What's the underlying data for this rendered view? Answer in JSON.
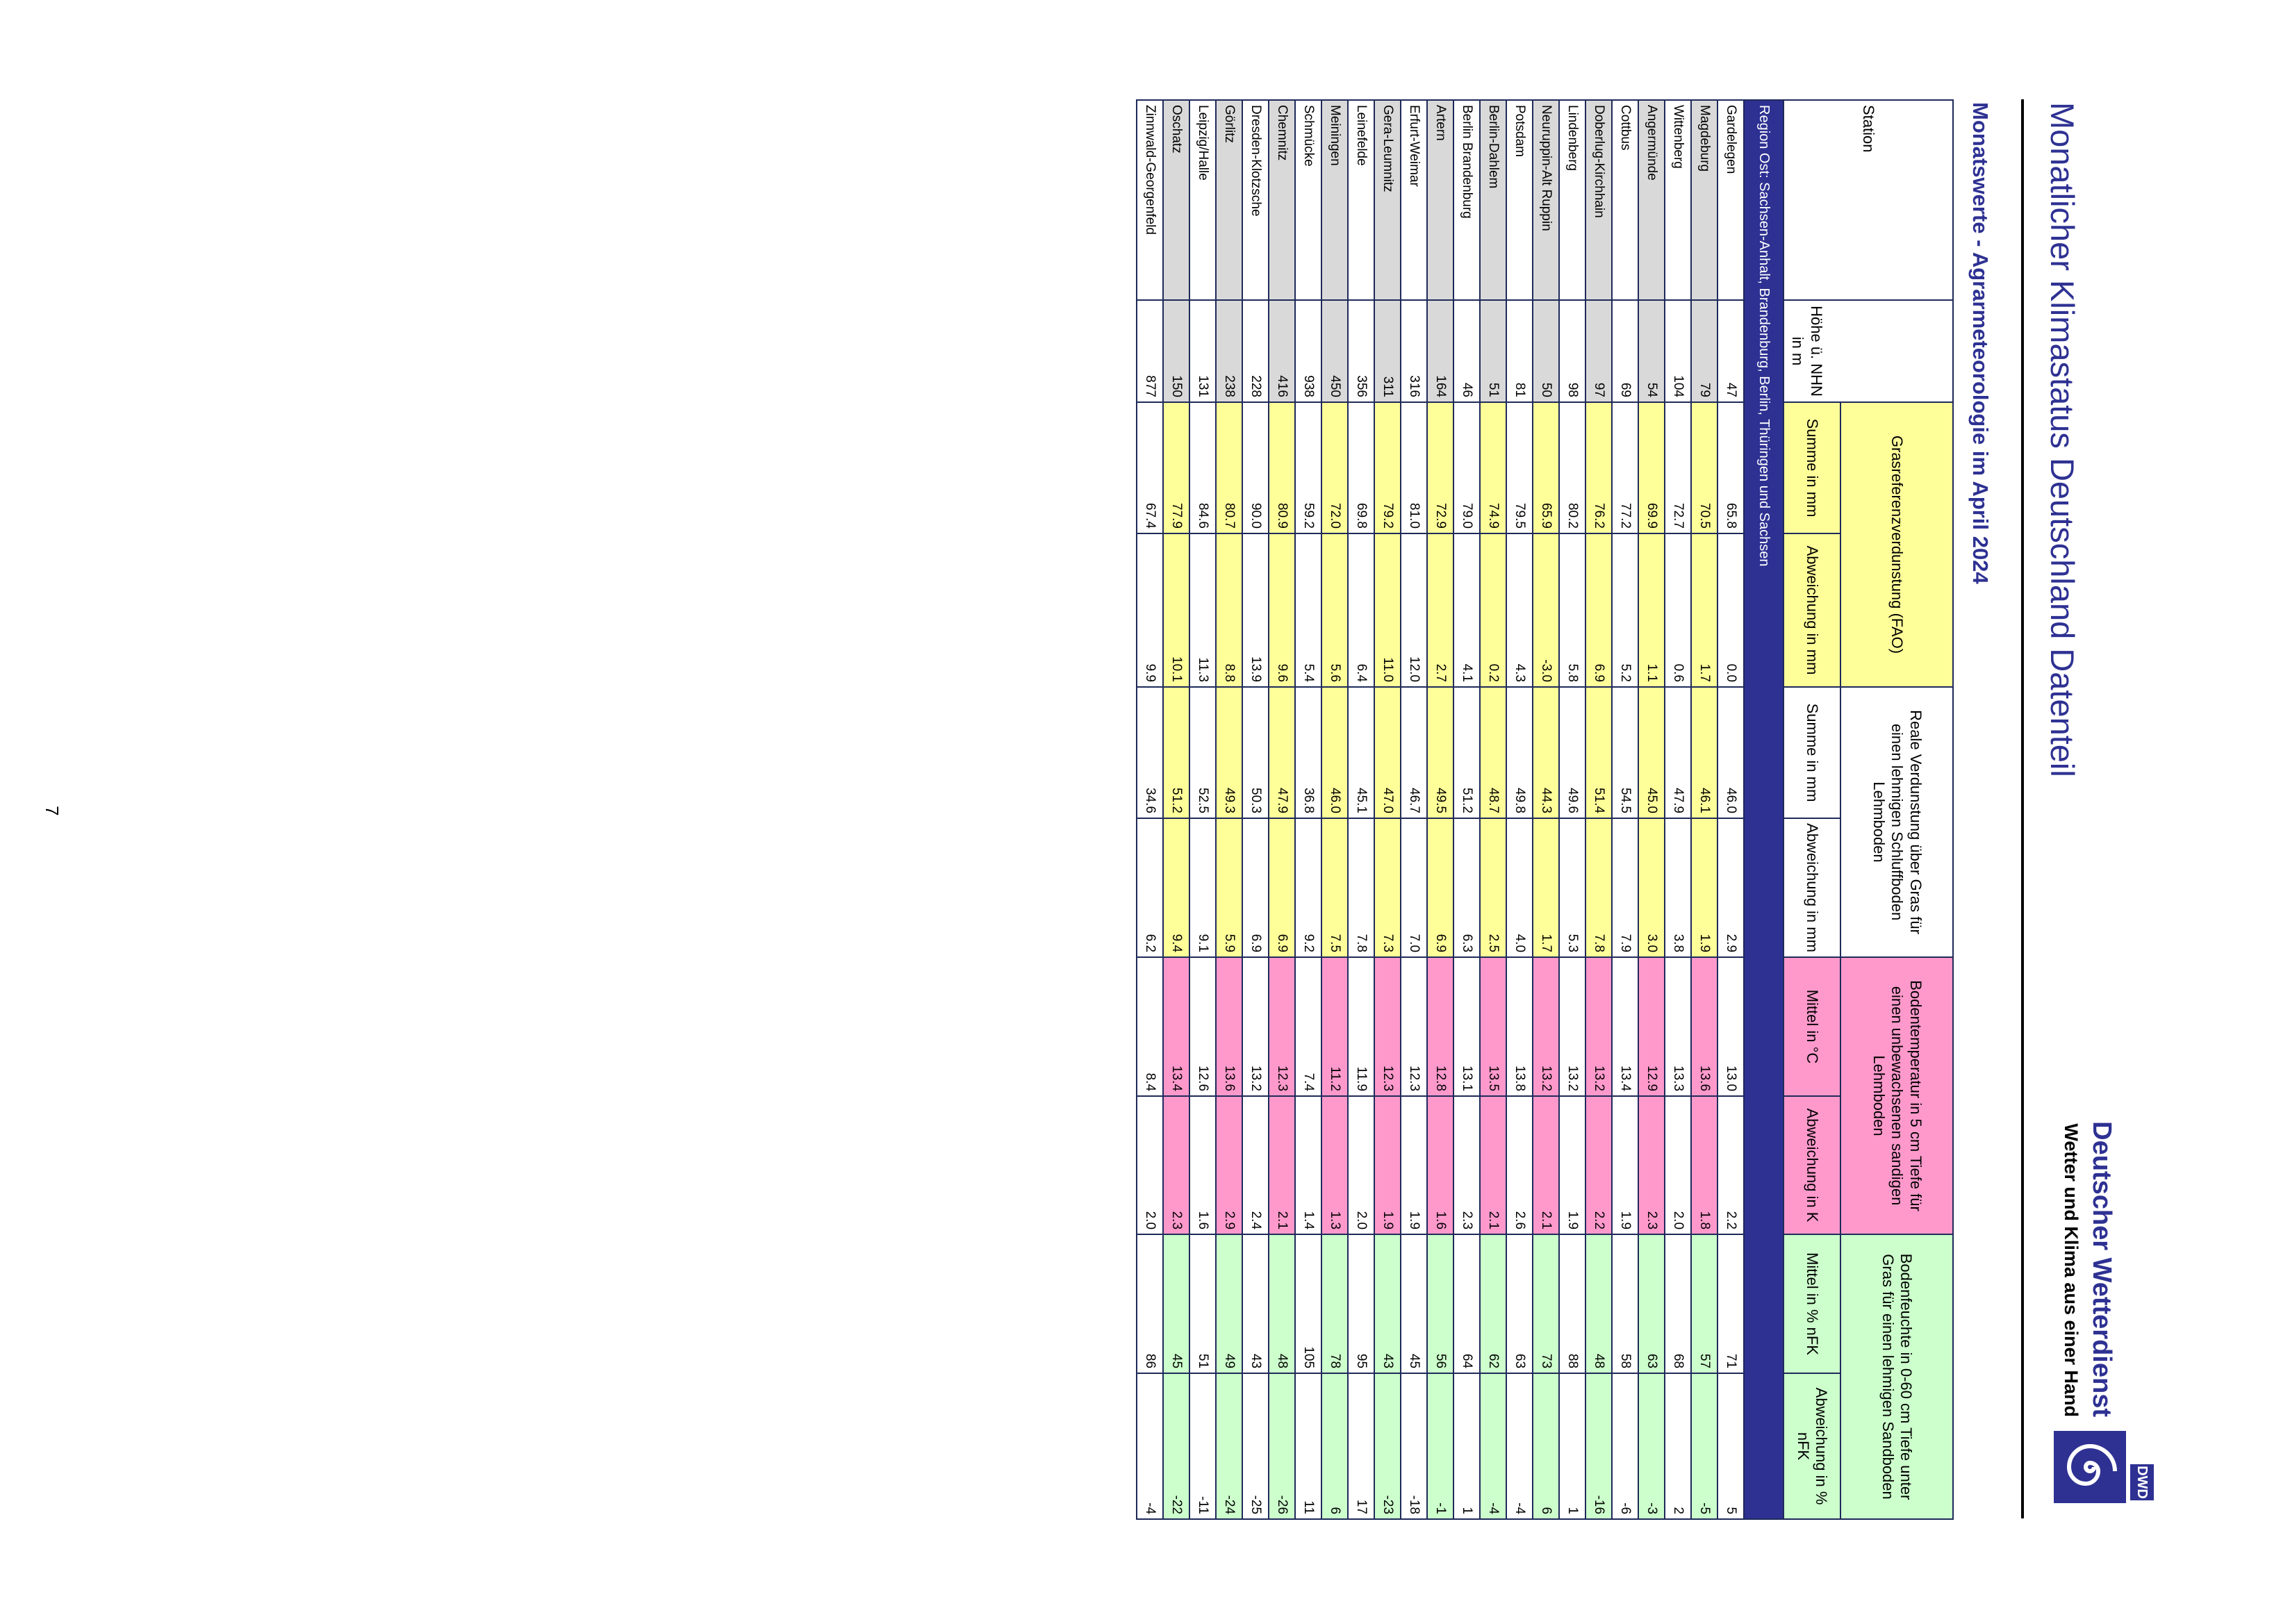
{
  "header": {
    "title": "Monatlicher Klimastatus Deutschland Datenteil",
    "subtitle": "Monatswerte - Agrarmeteorologie im April 2024",
    "brand": "Deutscher Wetterdienst",
    "tagline": "Wetter und Klima aus einer Hand",
    "logo": "DWD"
  },
  "table": {
    "group_headers": [
      "Station",
      "Grasreferenzverdunstung (FAO)",
      "Reale Verdunstung über Gras für einen lehmigen Schluffboden Lehmboden",
      "Bodentemperatur in 5 cm Tiefe für einen unbewachsenen sandigen Lehmboden",
      "Bodenfeuchte in 0-60 cm Tiefe unter Gras für einen lehmigen Sandboden"
    ],
    "sub_headers": [
      "Höhe ü. NHN in m",
      "Summe in mm",
      "Abweichung in mm",
      "Summe in mm",
      "Abweichung in mm",
      "Mittel in °C",
      "Abweichung in K",
      "Mittel in % nFK",
      "Abweichung in % nFK"
    ],
    "region": "Region Ost: Sachsen-Anhalt, Brandenburg, Berlin, Thüringen und Sachsen",
    "rows": [
      [
        "Gardelegen",
        "47",
        "65.8",
        "0.0",
        "46.0",
        "2.9",
        "13.0",
        "2.2",
        "71",
        "5"
      ],
      [
        "Magdeburg",
        "79",
        "70.5",
        "1.7",
        "46.1",
        "1.9",
        "13.6",
        "1.8",
        "57",
        "-5"
      ],
      [
        "Wittenberg",
        "104",
        "72.7",
        "0.6",
        "47.9",
        "3.8",
        "13.3",
        "2.0",
        "68",
        "2"
      ],
      [
        "Angermünde",
        "54",
        "69.9",
        "1.1",
        "45.0",
        "3.0",
        "12.9",
        "2.3",
        "63",
        "-3"
      ],
      [
        "Cottbus",
        "69",
        "77.2",
        "5.2",
        "54.5",
        "7.9",
        "13.4",
        "1.9",
        "58",
        "-6"
      ],
      [
        "Doberlug-Kirchhain",
        "97",
        "76.2",
        "6.9",
        "51.4",
        "7.8",
        "13.2",
        "2.2",
        "48",
        "-16"
      ],
      [
        "Lindenberg",
        "98",
        "80.2",
        "5.8",
        "49.6",
        "5.3",
        "13.2",
        "1.9",
        "88",
        "1"
      ],
      [
        "Neuruppin-Alt Ruppin",
        "50",
        "65.9",
        "-3.0",
        "44.3",
        "1.7",
        "13.2",
        "2.1",
        "73",
        "6"
      ],
      [
        "Potsdam",
        "81",
        "79.5",
        "4.3",
        "49.8",
        "4.0",
        "13.8",
        "2.6",
        "63",
        "-4"
      ],
      [
        "Berlin-Dahlem",
        "51",
        "74.9",
        "0.2",
        "48.7",
        "2.5",
        "13.5",
        "2.1",
        "62",
        "-4"
      ],
      [
        "Berlin Brandenburg",
        "46",
        "79.0",
        "4.1",
        "51.2",
        "6.3",
        "13.1",
        "2.3",
        "64",
        "1"
      ],
      [
        "Artern",
        "164",
        "72.9",
        "2.7",
        "49.5",
        "6.9",
        "12.8",
        "1.6",
        "56",
        "-1"
      ],
      [
        "Erfurt-Weimar",
        "316",
        "81.0",
        "12.0",
        "46.7",
        "7.0",
        "12.3",
        "1.9",
        "45",
        "-18"
      ],
      [
        "Gera-Leumnitz",
        "311",
        "79.2",
        "11.0",
        "47.0",
        "7.3",
        "12.3",
        "1.9",
        "43",
        "-23"
      ],
      [
        "Leinefelde",
        "356",
        "69.8",
        "6.4",
        "45.1",
        "7.8",
        "11.9",
        "2.0",
        "95",
        "17"
      ],
      [
        "Meiningen",
        "450",
        "72.0",
        "5.6",
        "46.0",
        "7.5",
        "11.2",
        "1.3",
        "78",
        "6"
      ],
      [
        "Schmücke",
        "938",
        "59.2",
        "5.4",
        "36.8",
        "9.2",
        "7.4",
        "1.4",
        "105",
        "11"
      ],
      [
        "Chemnitz",
        "416",
        "80.9",
        "9.6",
        "47.9",
        "6.9",
        "12.3",
        "2.1",
        "48",
        "-26"
      ],
      [
        "Dresden-Klotzsche",
        "228",
        "90.0",
        "13.9",
        "50.3",
        "6.9",
        "13.2",
        "2.4",
        "43",
        "-25"
      ],
      [
        "Görlitz",
        "238",
        "80.7",
        "8.8",
        "49.3",
        "5.9",
        "13.6",
        "2.9",
        "49",
        "-24"
      ],
      [
        "Leipzig/Halle",
        "131",
        "84.6",
        "11.3",
        "52.5",
        "9.1",
        "12.6",
        "1.6",
        "51",
        "-11"
      ],
      [
        "Oschatz",
        "150",
        "77.9",
        "10.1",
        "51.2",
        "9.4",
        "13.4",
        "2.3",
        "45",
        "-22"
      ],
      [
        "Zinnwald-Georgenfeld",
        "877",
        "67.4",
        "9.9",
        "34.6",
        "6.2",
        "8.4",
        "2.0",
        "86",
        "-4"
      ]
    ]
  },
  "page_number": "7"
}
